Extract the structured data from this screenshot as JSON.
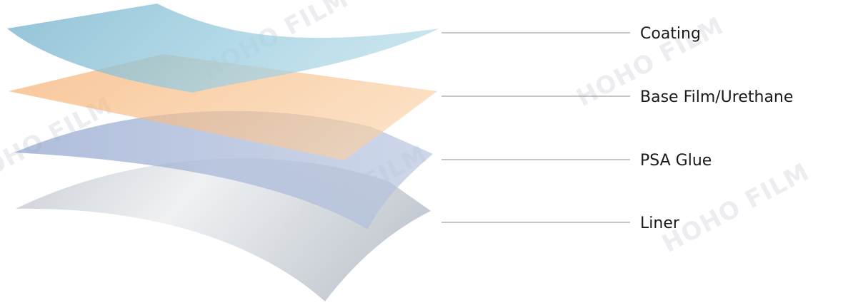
{
  "layers": [
    {
      "key": "coating",
      "label": "Coating",
      "color": "#7fbcd3"
    },
    {
      "key": "base",
      "label": "Base Film/Urethane",
      "color": "#f6b272"
    },
    {
      "key": "psa",
      "label": "PSA Glue",
      "color": "#9fb1d6"
    },
    {
      "key": "liner",
      "label": "Liner",
      "color": "#c6ccd4"
    }
  ],
  "watermark": {
    "text": "HOHO FILM"
  }
}
